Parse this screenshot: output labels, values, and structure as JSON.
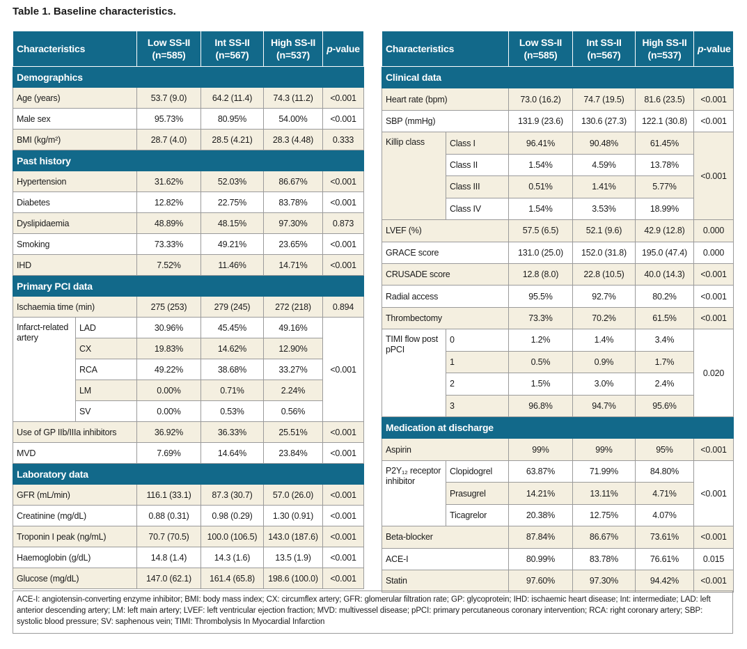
{
  "title": "Table 1. Baseline characteristics.",
  "left_table": {
    "columns": [
      "Characteristics",
      {
        "name": "Low SS-II",
        "n": "(n=585)"
      },
      {
        "name": "Int SS-II",
        "n": "(n=567)"
      },
      {
        "name": "High SS-II",
        "n": "(n=537)"
      },
      {
        "italic": "p",
        "rest": "-value"
      }
    ],
    "sections": [
      {
        "title": "Demographics",
        "rows": [
          {
            "label": "Age (years)",
            "values": [
              "53.7 (9.0)",
              "64.2 (11.4)",
              "74.3 (11.2)"
            ],
            "p": "<0.001"
          },
          {
            "label": "Male sex",
            "values": [
              "95.73%",
              "80.95%",
              "54.00%"
            ],
            "p": "<0.001"
          },
          {
            "label": "BMI (kg/m²)",
            "values": [
              "28.7 (4.0)",
              "28.5 (4.21)",
              "28.3 (4.48)"
            ],
            "p": "0.333"
          }
        ]
      },
      {
        "title": "Past history",
        "rows": [
          {
            "label": "Hypertension",
            "values": [
              "31.62%",
              "52.03%",
              "86.67%"
            ],
            "p": "<0.001"
          },
          {
            "label": "Diabetes",
            "values": [
              "12.82%",
              "22.75%",
              "83.78%"
            ],
            "p": "<0.001"
          },
          {
            "label": "Dyslipidaemia",
            "values": [
              "48.89%",
              "48.15%",
              "97.30%"
            ],
            "p": "0.873"
          },
          {
            "label": "Smoking",
            "values": [
              "73.33%",
              "49.21%",
              "23.65%"
            ],
            "p": "<0.001"
          },
          {
            "label": "IHD",
            "values": [
              "7.52%",
              "11.46%",
              "14.71%"
            ],
            "p": "<0.001"
          }
        ]
      },
      {
        "title": "Primary PCI data",
        "rows": [
          {
            "label": "Ischaemia time (min)",
            "values": [
              "275 (253)",
              "279 (245)",
              "272 (218)"
            ],
            "p": "0.894"
          },
          {
            "label": "Infarct-related artery",
            "subrows": [
              {
                "label": "LAD",
                "values": [
                  "30.96%",
                  "45.45%",
                  "49.16%"
                ]
              },
              {
                "label": "CX",
                "values": [
                  "19.83%",
                  "14.62%",
                  "12.90%"
                ]
              },
              {
                "label": "RCA",
                "values": [
                  "49.22%",
                  "38.68%",
                  "33.27%"
                ]
              },
              {
                "label": "LM",
                "values": [
                  "0.00%",
                  "0.71%",
                  "2.24%"
                ]
              },
              {
                "label": "SV",
                "values": [
                  "0.00%",
                  "0.53%",
                  "0.56%"
                ]
              }
            ],
            "p": "<0.001"
          },
          {
            "label": "Use of GP IIb/IIIa inhibitors",
            "values": [
              "36.92%",
              "36.33%",
              "25.51%"
            ],
            "p": "<0.001"
          },
          {
            "label": "MVD",
            "values": [
              "7.69%",
              "14.64%",
              "23.84%"
            ],
            "p": "<0.001"
          }
        ]
      },
      {
        "title": "Laboratory data",
        "rows": [
          {
            "label": "GFR (mL/min)",
            "values": [
              "116.1 (33.1)",
              "87.3 (30.7)",
              "57.0 (26.0)"
            ],
            "p": "<0.001"
          },
          {
            "label": "Creatinine (mg/dL)",
            "values": [
              "0.88 (0.31)",
              "0.98 (0.29)",
              "1.30 (0.91)"
            ],
            "p": "<0.001"
          },
          {
            "label": "Troponin I peak (ng/mL)",
            "values": [
              "70.7 (70.5)",
              "100.0 (106.5)",
              "143.0 (187.6)"
            ],
            "p": "<0.001"
          },
          {
            "label": "Haemoglobin (g/dL)",
            "values": [
              "14.8 (1.4)",
              "14.3 (1.6)",
              "13.5 (1.9)"
            ],
            "p": "<0.001"
          },
          {
            "label": "Glucose (mg/dL)",
            "values": [
              "147.0 (62.1)",
              "161.4 (65.8)",
              "198.6 (100.0)"
            ],
            "p": "<0.001"
          }
        ]
      }
    ]
  },
  "right_table": {
    "columns": [
      "Characteristics",
      {
        "name": "Low SS-II",
        "n": "(n=585)"
      },
      {
        "name": "Int SS-II",
        "n": "(n=567)"
      },
      {
        "name": "High SS-II",
        "n": "(n=537)"
      },
      {
        "italic": "p",
        "rest": "-value"
      }
    ],
    "sections": [
      {
        "title": "Clinical data",
        "rows": [
          {
            "label": "Heart rate (bpm)",
            "values": [
              "73.0 (16.2)",
              "74.7 (19.5)",
              "81.6 (23.5)"
            ],
            "p": "<0.001"
          },
          {
            "label": "SBP (mmHg)",
            "values": [
              "131.9 (23.6)",
              "130.6 (27.3)",
              "122.1 (30.8)"
            ],
            "p": "<0.001"
          },
          {
            "label": "Killip class",
            "subrows": [
              {
                "label": "Class I",
                "values": [
                  "96.41%",
                  "90.48%",
                  "61.45%"
                ]
              },
              {
                "label": "Class II",
                "values": [
                  "1.54%",
                  "4.59%",
                  "13.78%"
                ]
              },
              {
                "label": "Class III",
                "values": [
                  "0.51%",
                  "1.41%",
                  "5.77%"
                ]
              },
              {
                "label": "Class IV",
                "values": [
                  "1.54%",
                  "3.53%",
                  "18.99%"
                ]
              }
            ],
            "p": "<0.001"
          },
          {
            "label": "LVEF (%)",
            "values": [
              "57.5 (6.5)",
              "52.1 (9.6)",
              "42.9 (12.8)"
            ],
            "p": "0.000"
          },
          {
            "label": "GRACE score",
            "values": [
              "131.0 (25.0)",
              "152.0 (31.8)",
              "195.0 (47.4)"
            ],
            "p": "0.000"
          },
          {
            "label": "CRUSADE score",
            "values": [
              "12.8 (8.0)",
              "22.8 (10.5)",
              "40.0 (14.3)"
            ],
            "p": "<0.001"
          },
          {
            "label": "Radial access",
            "values": [
              "95.5%",
              "92.7%",
              "80.2%"
            ],
            "p": "<0.001"
          },
          {
            "label": "Thrombectomy",
            "values": [
              "73.3%",
              "70.2%",
              "61.5%"
            ],
            "p": "<0.001"
          },
          {
            "label": "TIMI flow post pPCI",
            "subrows": [
              {
                "label": "0",
                "values": [
                  "1.2%",
                  "1.4%",
                  "3.4%"
                ]
              },
              {
                "label": "1",
                "values": [
                  "0.5%",
                  "0.9%",
                  "1.7%"
                ]
              },
              {
                "label": "2",
                "values": [
                  "1.5%",
                  "3.0%",
                  "2.4%"
                ]
              },
              {
                "label": "3",
                "values": [
                  "96.8%",
                  "94.7%",
                  "95.6%"
                ]
              }
            ],
            "p": "0.020"
          }
        ]
      },
      {
        "title": "Medication at discharge",
        "rows": [
          {
            "label": "Aspirin",
            "values": [
              "99%",
              "99%",
              "95%"
            ],
            "p": "<0.001"
          },
          {
            "label": "P2Y₁₂ receptor inhibitor",
            "subrows": [
              {
                "label": "Clopidogrel",
                "values": [
                  "63.87%",
                  "71.99%",
                  "84.80%"
                ]
              },
              {
                "label": "Prasugrel",
                "values": [
                  "14.21%",
                  "13.11%",
                  "4.71%"
                ]
              },
              {
                "label": "Ticagrelor",
                "values": [
                  "20.38%",
                  "12.75%",
                  "4.07%"
                ]
              }
            ],
            "p": "<0.001"
          },
          {
            "label": "Beta-blocker",
            "values": [
              "87.84%",
              "86.67%",
              "73.61%"
            ],
            "p": "<0.001"
          },
          {
            "label": "ACE-I",
            "values": [
              "80.99%",
              "83.78%",
              "76.61%"
            ],
            "p": "0.015"
          },
          {
            "label": "Statin",
            "values": [
              "97.60%",
              "97.30%",
              "94.42%"
            ],
            "p": "<0.001"
          }
        ]
      }
    ]
  },
  "footnote": "ACE-I: angiotensin-converting enzyme inhibitor; BMI: body mass index; CX: circumflex artery; GFR: glomerular filtration rate; GP: glycoprotein; IHD: ischaemic heart disease; Int: intermediate; LAD: left anterior descending artery; LM: left main artery; LVEF: left ventricular ejection fraction; MVD: multivessel disease; pPCI: primary percutaneous coronary intervention; RCA: right coronary artery; SBP: systolic blood pressure; SV: saphenous vein; TIMI: Thrombolysis In Myocardial Infarction"
}
